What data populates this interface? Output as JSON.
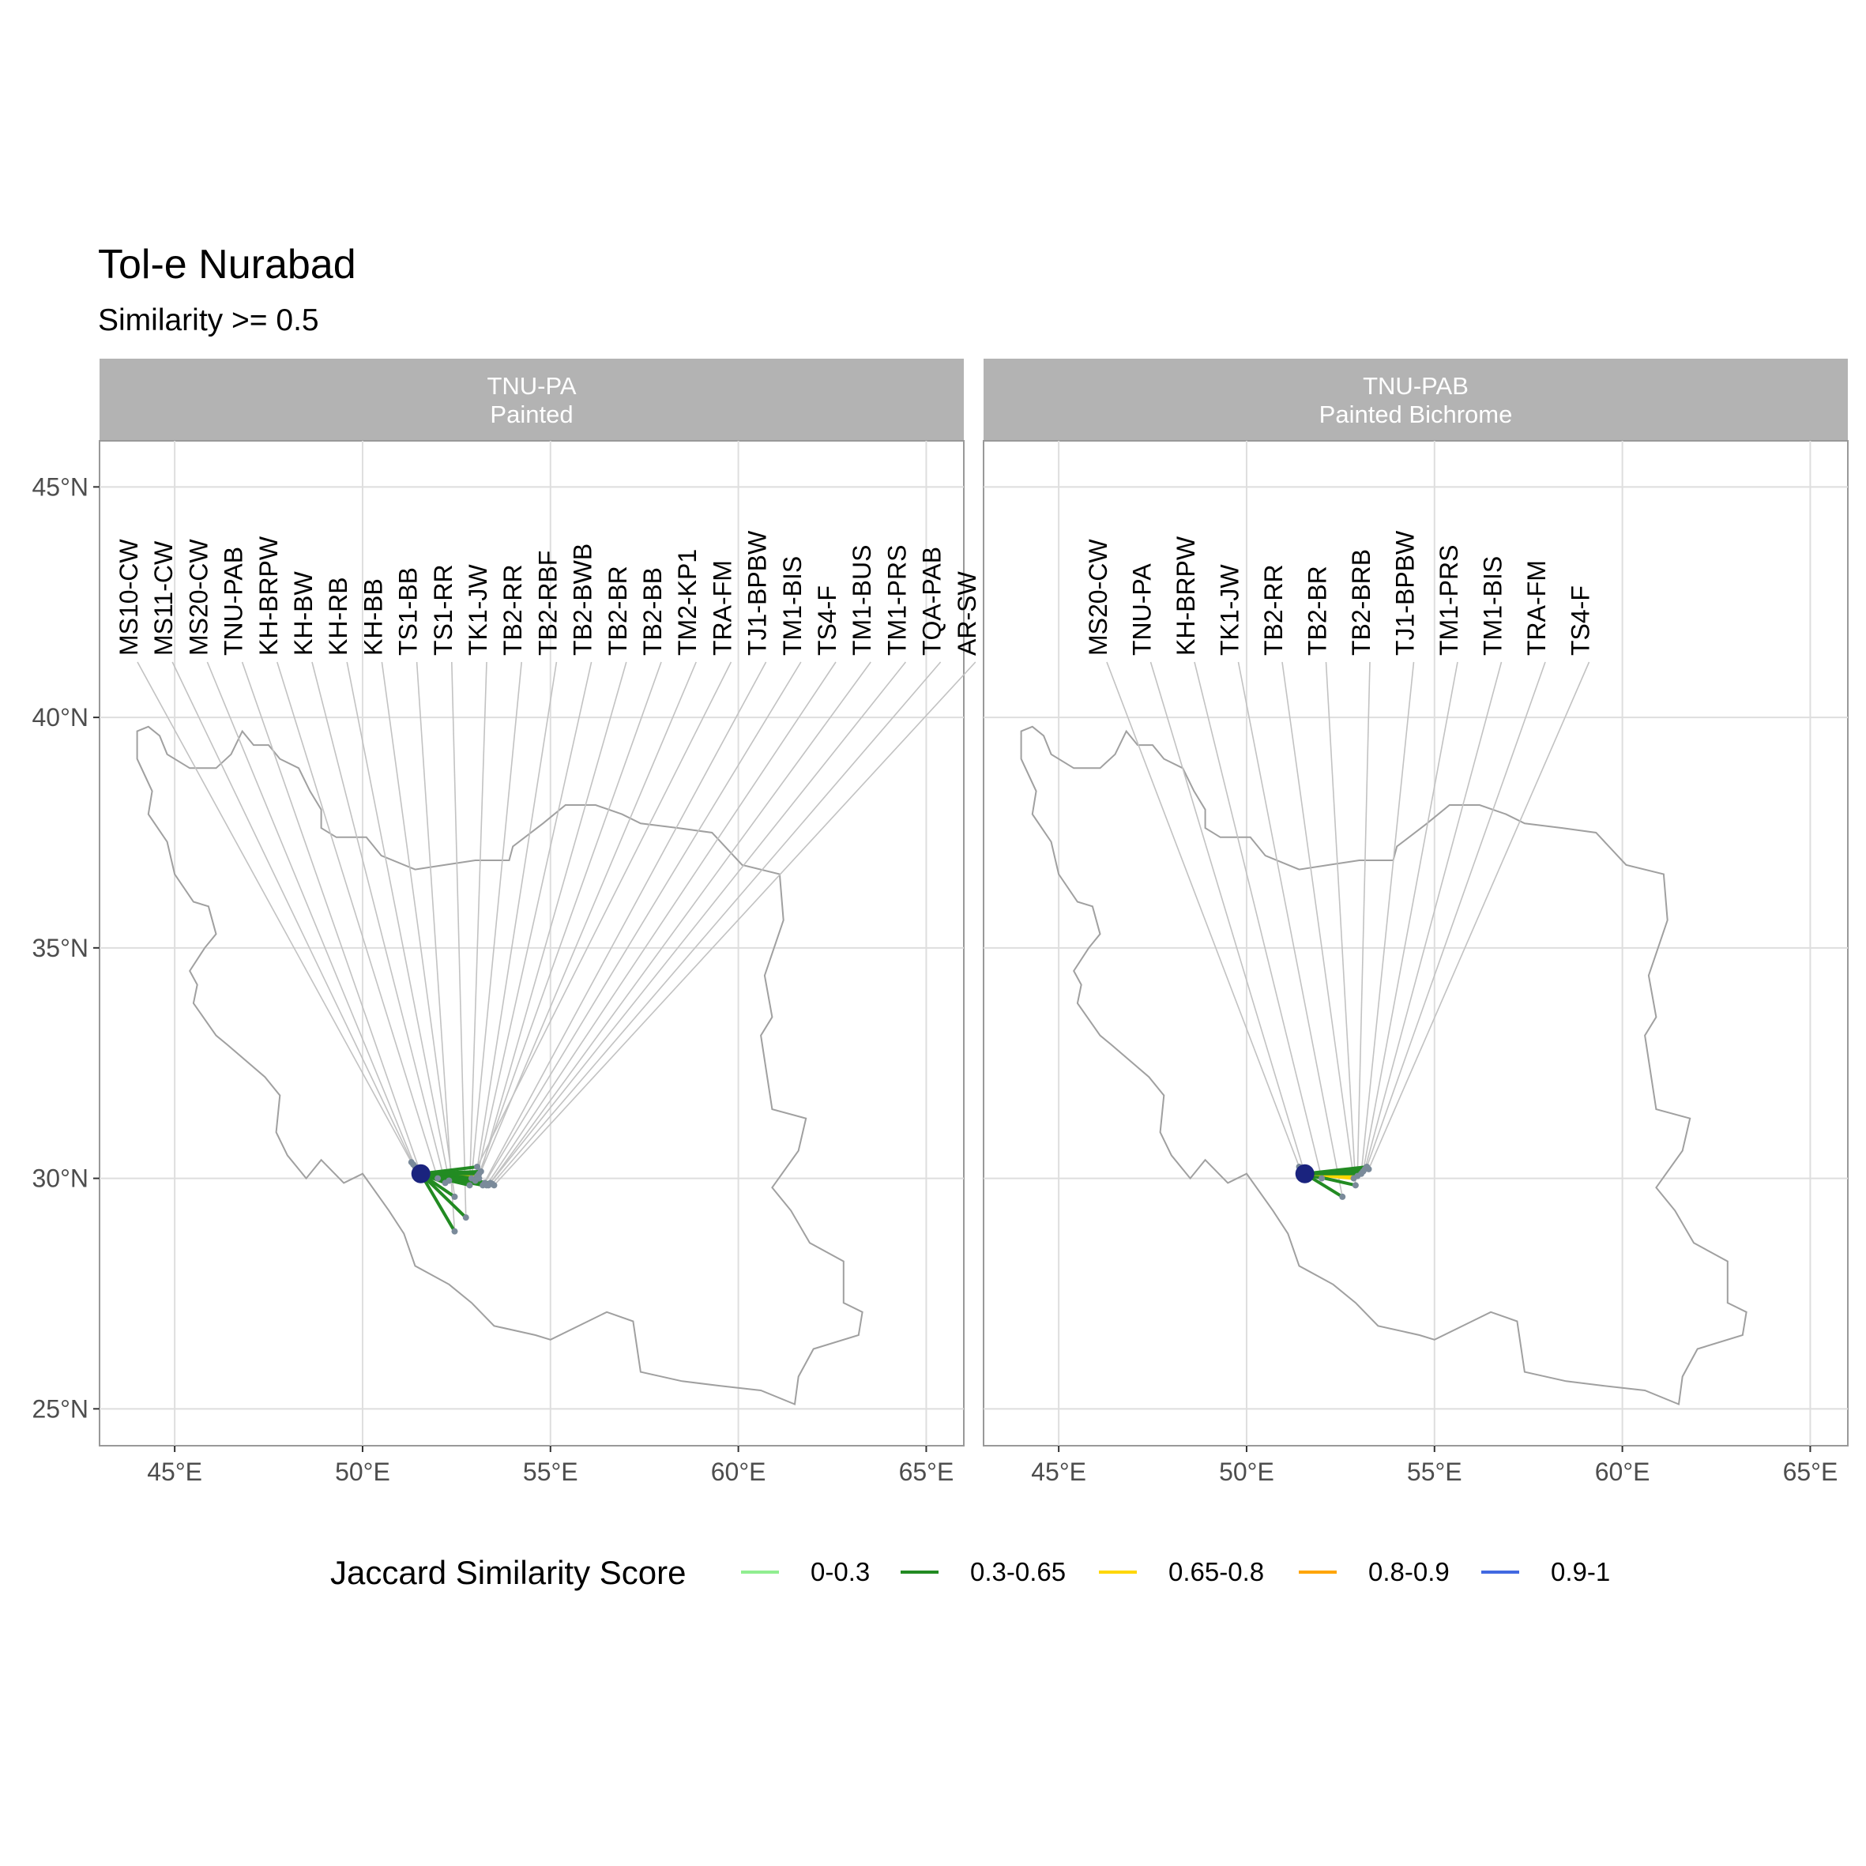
{
  "title": "Tol-e Nurabad",
  "subtitle": "Similarity >= 0.5",
  "chart_data": {
    "type": "map",
    "x_ticks": [
      "45°E",
      "50°E",
      "55°E",
      "60°E",
      "65°E"
    ],
    "x_tick_values": [
      45,
      50,
      55,
      60,
      65
    ],
    "y_ticks": [
      "25°N",
      "30°N",
      "35°N",
      "40°N",
      "45°N"
    ],
    "y_tick_values": [
      25,
      30,
      35,
      40,
      45
    ],
    "xlim": [
      43,
      66
    ],
    "ylim": [
      24.2,
      46
    ],
    "grid": true,
    "legend_position": "bottom",
    "legend": {
      "title": "Jaccard Similarity Score",
      "items": [
        {
          "label": "0-0.3",
          "color": "#90ee90"
        },
        {
          "label": "0.3-0.65",
          "color": "#228b22"
        },
        {
          "label": "0.65-0.8",
          "color": "#ffd700"
        },
        {
          "label": "0.8-0.9",
          "color": "#ffa500"
        },
        {
          "label": "0.9-1",
          "color": "#4169e1"
        }
      ]
    },
    "origin": {
      "lon": 51.55,
      "lat": 30.1
    },
    "iran_outline": [
      [
        44.0,
        39.7
      ],
      [
        44.3,
        39.8
      ],
      [
        44.6,
        39.6
      ],
      [
        44.8,
        39.2
      ],
      [
        45.4,
        38.9
      ],
      [
        46.1,
        38.9
      ],
      [
        46.5,
        39.2
      ],
      [
        46.8,
        39.7
      ],
      [
        47.1,
        39.4
      ],
      [
        47.5,
        39.4
      ],
      [
        47.8,
        39.1
      ],
      [
        48.3,
        38.9
      ],
      [
        48.6,
        38.4
      ],
      [
        48.9,
        38.0
      ],
      [
        48.9,
        37.6
      ],
      [
        49.3,
        37.4
      ],
      [
        50.1,
        37.4
      ],
      [
        50.5,
        37.0
      ],
      [
        51.4,
        36.7
      ],
      [
        52.2,
        36.8
      ],
      [
        53.0,
        36.9
      ],
      [
        53.9,
        36.9
      ],
      [
        54.0,
        37.2
      ],
      [
        54.8,
        37.7
      ],
      [
        55.4,
        38.1
      ],
      [
        56.2,
        38.1
      ],
      [
        56.9,
        37.9
      ],
      [
        57.4,
        37.7
      ],
      [
        58.4,
        37.6
      ],
      [
        59.3,
        37.5
      ],
      [
        60.1,
        36.8
      ],
      [
        61.1,
        36.6
      ],
      [
        61.2,
        35.6
      ],
      [
        60.7,
        34.4
      ],
      [
        60.9,
        33.5
      ],
      [
        60.6,
        33.1
      ],
      [
        60.9,
        31.5
      ],
      [
        61.8,
        31.3
      ],
      [
        61.6,
        30.6
      ],
      [
        60.9,
        29.8
      ],
      [
        61.4,
        29.3
      ],
      [
        61.9,
        28.6
      ],
      [
        62.8,
        28.2
      ],
      [
        62.8,
        27.3
      ],
      [
        63.3,
        27.1
      ],
      [
        63.2,
        26.6
      ],
      [
        62.0,
        26.3
      ],
      [
        61.6,
        25.7
      ],
      [
        61.5,
        25.1
      ],
      [
        60.6,
        25.4
      ],
      [
        59.5,
        25.5
      ],
      [
        58.5,
        25.6
      ],
      [
        57.4,
        25.8
      ],
      [
        57.2,
        26.9
      ],
      [
        56.5,
        27.1
      ],
      [
        56.0,
        26.9
      ],
      [
        55.0,
        26.5
      ],
      [
        54.6,
        26.6
      ],
      [
        53.5,
        26.8
      ],
      [
        52.9,
        27.3
      ],
      [
        52.3,
        27.7
      ],
      [
        51.4,
        28.1
      ],
      [
        51.1,
        28.8
      ],
      [
        50.7,
        29.3
      ],
      [
        50.0,
        30.1
      ],
      [
        49.5,
        29.9
      ],
      [
        48.9,
        30.4
      ],
      [
        48.5,
        30.0
      ],
      [
        48.0,
        30.5
      ],
      [
        47.7,
        31.0
      ],
      [
        47.8,
        31.8
      ],
      [
        47.4,
        32.2
      ],
      [
        46.4,
        32.9
      ],
      [
        46.1,
        33.1
      ],
      [
        45.5,
        33.8
      ],
      [
        45.6,
        34.2
      ],
      [
        45.4,
        34.5
      ],
      [
        45.8,
        35.0
      ],
      [
        46.1,
        35.3
      ],
      [
        45.9,
        35.9
      ],
      [
        45.5,
        36.0
      ],
      [
        45.0,
        36.6
      ],
      [
        44.8,
        37.3
      ],
      [
        44.3,
        37.9
      ],
      [
        44.4,
        38.4
      ],
      [
        44.0,
        39.1
      ],
      [
        44.0,
        39.7
      ]
    ],
    "panels": [
      {
        "strip_code": "TNU-PA",
        "strip_name": "Painted",
        "sites": [
          {
            "label": "MS10-CW",
            "lon": 51.3,
            "lat": 30.35,
            "color": "#228b22"
          },
          {
            "label": "MS11-CW",
            "lon": 51.35,
            "lat": 30.3,
            "color": "#228b22"
          },
          {
            "label": "MS20-CW",
            "lon": 51.4,
            "lat": 30.25,
            "color": "#4169e1"
          },
          {
            "label": "TNU-PAB",
            "lon": 51.55,
            "lat": 30.1,
            "color": "#4169e1"
          },
          {
            "label": "KH-BRPW",
            "lon": 52.0,
            "lat": 30.0,
            "color": "#228b22"
          },
          {
            "label": "KH-BW",
            "lon": 52.2,
            "lat": 29.9,
            "color": "#228b22"
          },
          {
            "label": "KH-RB",
            "lon": 52.3,
            "lat": 29.95,
            "color": "#228b22"
          },
          {
            "label": "KH-BB",
            "lon": 52.45,
            "lat": 29.6,
            "color": "#228b22"
          },
          {
            "label": "TS1-BB",
            "lon": 52.45,
            "lat": 28.85,
            "color": "#228b22"
          },
          {
            "label": "TS1-RR",
            "lon": 52.75,
            "lat": 29.15,
            "color": "#228b22"
          },
          {
            "label": "TK1-JW",
            "lon": 52.85,
            "lat": 29.85,
            "color": "#228b22"
          },
          {
            "label": "TB2-RR",
            "lon": 52.9,
            "lat": 30.0,
            "color": "#ffd700"
          },
          {
            "label": "TB2-RBF",
            "lon": 53.0,
            "lat": 29.95,
            "color": "#228b22"
          },
          {
            "label": "TB2-BWB",
            "lon": 53.05,
            "lat": 30.05,
            "color": "#ffd700"
          },
          {
            "label": "TB2-BR",
            "lon": 53.1,
            "lat": 30.0,
            "color": "#228b22"
          },
          {
            "label": "TB2-BB",
            "lon": 53.1,
            "lat": 30.1,
            "color": "#228b22"
          },
          {
            "label": "TM2-KP1",
            "lon": 53.15,
            "lat": 30.15,
            "color": "#228b22"
          },
          {
            "label": "TRA-FM",
            "lon": 53.05,
            "lat": 30.25,
            "color": "#228b22"
          },
          {
            "label": "TJ1-BPBW",
            "lon": 53.2,
            "lat": 29.85,
            "color": "#228b22"
          },
          {
            "label": "TM1-BIS",
            "lon": 53.25,
            "lat": 29.9,
            "color": "#228b22"
          },
          {
            "label": "TS4-F",
            "lon": 53.3,
            "lat": 29.85,
            "color": "#228b22"
          },
          {
            "label": "TM1-BUS",
            "lon": 53.35,
            "lat": 29.85,
            "color": "#228b22"
          },
          {
            "label": "TM1-PRS",
            "lon": 53.4,
            "lat": 29.9,
            "color": "#228b22"
          },
          {
            "label": "TQA-PAB",
            "lon": 53.45,
            "lat": 29.88,
            "color": "#228b22"
          },
          {
            "label": "AR-SW",
            "lon": 53.5,
            "lat": 29.85,
            "color": "#228b22"
          }
        ]
      },
      {
        "strip_code": "TNU-PAB",
        "strip_name": "Painted Bichrome",
        "sites": [
          {
            "label": "MS20-CW",
            "lon": 51.4,
            "lat": 30.25,
            "color": "#228b22"
          },
          {
            "label": "TNU-PA",
            "lon": 51.55,
            "lat": 30.1,
            "color": "#4169e1"
          },
          {
            "label": "KH-BRPW",
            "lon": 52.0,
            "lat": 30.0,
            "color": "#228b22"
          },
          {
            "label": "TK1-JW",
            "lon": 52.55,
            "lat": 29.6,
            "color": "#228b22"
          },
          {
            "label": "TB2-RR",
            "lon": 52.85,
            "lat": 30.0,
            "color": "#ffd700"
          },
          {
            "label": "TB2-BR",
            "lon": 52.9,
            "lat": 29.85,
            "color": "#228b22"
          },
          {
            "label": "TB2-BRB",
            "lon": 52.95,
            "lat": 30.05,
            "color": "#ffd700"
          },
          {
            "label": "TJ1-BPBW",
            "lon": 53.05,
            "lat": 30.1,
            "color": "#228b22"
          },
          {
            "label": "TM1-PRS",
            "lon": 53.1,
            "lat": 30.15,
            "color": "#228b22"
          },
          {
            "label": "TM1-BIS",
            "lon": 53.15,
            "lat": 30.2,
            "color": "#228b22"
          },
          {
            "label": "TRA-FM",
            "lon": 53.2,
            "lat": 30.25,
            "color": "#228b22"
          },
          {
            "label": "TS4-F",
            "lon": 53.25,
            "lat": 30.2,
            "color": "#228b22"
          }
        ]
      }
    ]
  }
}
